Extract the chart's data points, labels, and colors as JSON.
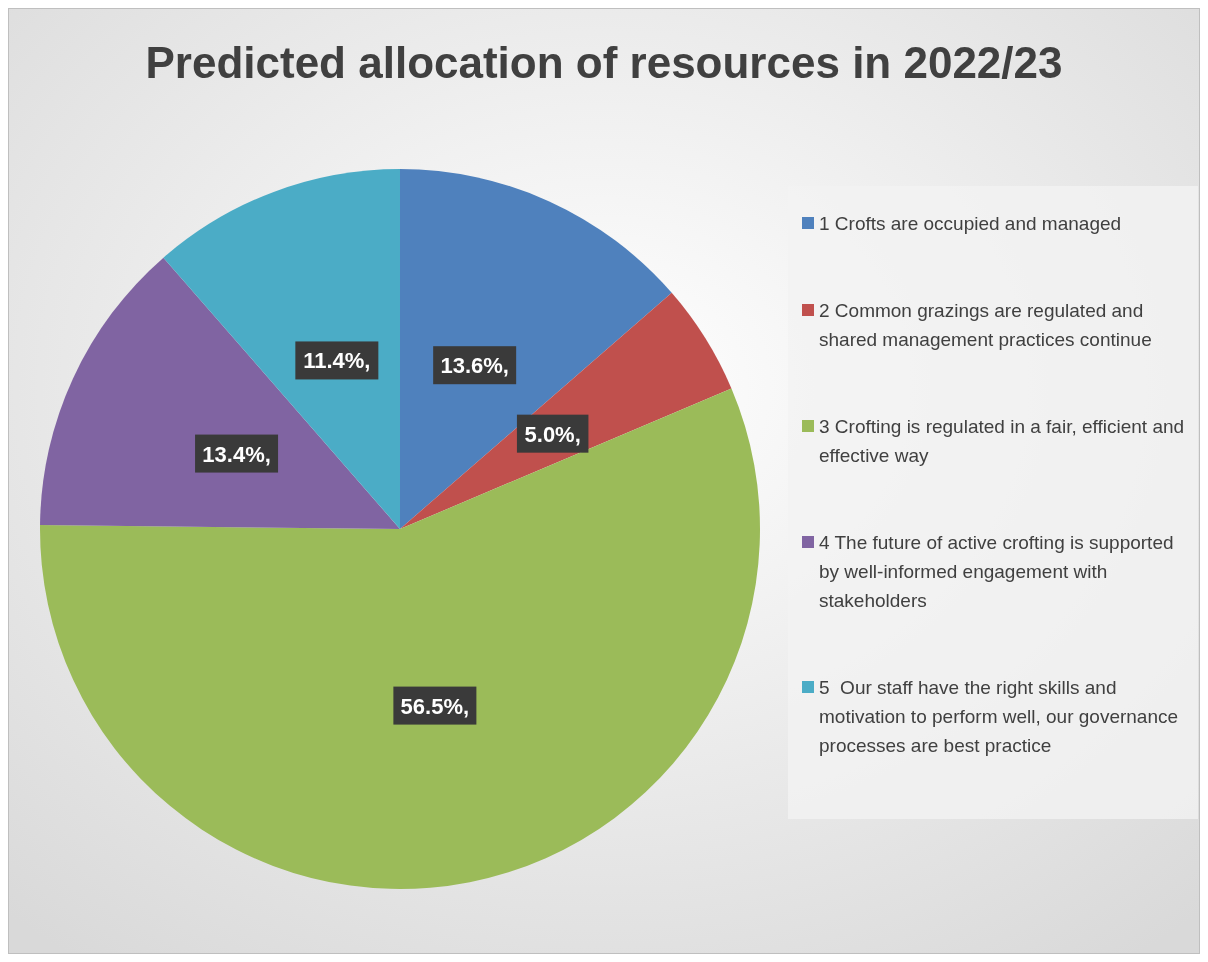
{
  "chart_data": {
    "type": "pie",
    "title": "Predicted allocation of resources in 2022/23",
    "categories": [
      "1 Crofts are occupied and managed",
      "2 Common grazings are regulated and shared management practices continue",
      "3 Crofting is regulated in a fair, efficient and effective way",
      "4 The future of active crofting is supported by well-informed engagement with stakeholders",
      "5  Our staff have the right skills and motivation to perform well, our governance processes are best practice"
    ],
    "values": [
      13.6,
      5.0,
      56.5,
      13.4,
      11.4
    ],
    "value_labels": [
      "13.6%,",
      "5.0%,",
      "56.5%,",
      "13.4%,",
      "11.4%,"
    ],
    "colors": [
      "#4f81bd",
      "#c0504d",
      "#9bbb59",
      "#8064a2",
      "#4bacc6"
    ],
    "legend": "right"
  }
}
